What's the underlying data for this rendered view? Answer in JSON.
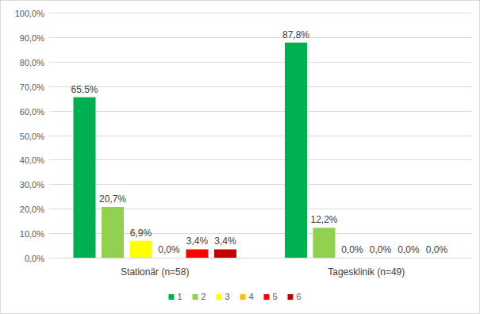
{
  "chart_data": {
    "type": "bar",
    "categories": [
      "Stationär (n=58)",
      "Tagesklinik (n=49)"
    ],
    "series": [
      {
        "name": "1",
        "color": "#00b050",
        "values": [
          65.5,
          87.8
        ],
        "value_labels": [
          "65,5%",
          "87,8%"
        ]
      },
      {
        "name": "2",
        "color": "#92d050",
        "values": [
          20.7,
          12.2
        ],
        "value_labels": [
          "20,7%",
          "12,2%"
        ]
      },
      {
        "name": "3",
        "color": "#ffff00",
        "values": [
          6.9,
          0
        ],
        "value_labels": [
          "6,9%",
          "0,0%"
        ]
      },
      {
        "name": "4",
        "color": "#ffc000",
        "values": [
          0,
          0
        ],
        "value_labels": [
          "0,0%",
          "0,0%"
        ]
      },
      {
        "name": "5",
        "color": "#ff0000",
        "values": [
          3.4,
          0
        ],
        "value_labels": [
          "3,4%",
          "0,0%"
        ]
      },
      {
        "name": "6",
        "color": "#c00000",
        "values": [
          3.4,
          0
        ],
        "value_labels": [
          "3,4%",
          "0,0%"
        ]
      }
    ],
    "ylim": [
      0,
      100
    ],
    "yticks": [
      {
        "value": 0,
        "label": "0,0%"
      },
      {
        "value": 10,
        "label": "10,0%"
      },
      {
        "value": 20,
        "label": "20,0%"
      },
      {
        "value": 30,
        "label": "30,0%"
      },
      {
        "value": 40,
        "label": "40,0%"
      },
      {
        "value": 50,
        "label": "50,0%"
      },
      {
        "value": 60,
        "label": "60,0%"
      },
      {
        "value": 70,
        "label": "70,0%"
      },
      {
        "value": 80,
        "label": "80,0%"
      },
      {
        "value": 90,
        "label": "90,0%"
      },
      {
        "value": 100,
        "label": "100,0%"
      }
    ],
    "grid": true,
    "data_labels": true,
    "legend": "bottom"
  }
}
